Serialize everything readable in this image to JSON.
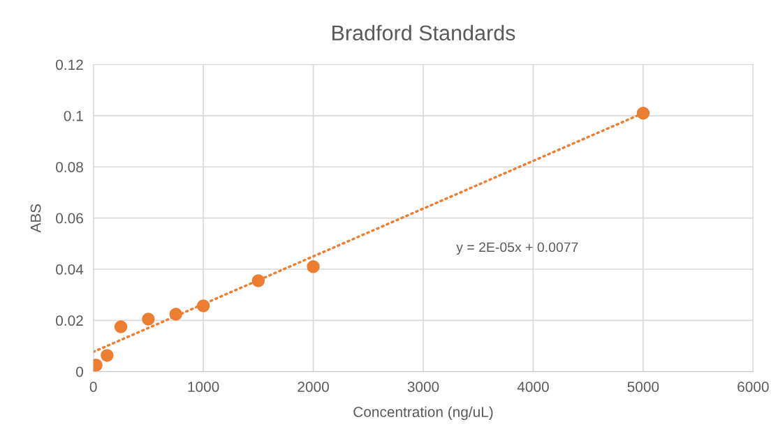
{
  "chart_data": {
    "type": "scatter",
    "title": "Bradford Standards",
    "xlabel": "Concentration (ng/uL)",
    "ylabel": "ABS",
    "xlim": [
      0,
      6000
    ],
    "xticks": [
      0,
      1000,
      2000,
      3000,
      4000,
      5000,
      6000
    ],
    "ylim": [
      0,
      0.12
    ],
    "yticks": [
      0,
      0.02,
      0.04,
      0.06,
      0.08,
      0.1,
      0.12
    ],
    "grid": true,
    "marker": "circle",
    "series": [
      {
        "color": "#ed7d31",
        "x": [
          25,
          125,
          250,
          500,
          750,
          1000,
          1500,
          2000,
          5000
        ],
        "values": [
          0.0025,
          0.0063,
          0.0175,
          0.0205,
          0.0224,
          0.0257,
          0.0355,
          0.041,
          0.101
        ]
      },
      {
        "type": "line",
        "color": "#ed7d31",
        "line_style": "dotted",
        "marker": "none",
        "x": [
          0,
          5000
        ],
        "values": [
          0.0077,
          0.101
        ]
      }
    ],
    "annotations": [
      "y = 2E-05x + 0.0077"
    ]
  }
}
